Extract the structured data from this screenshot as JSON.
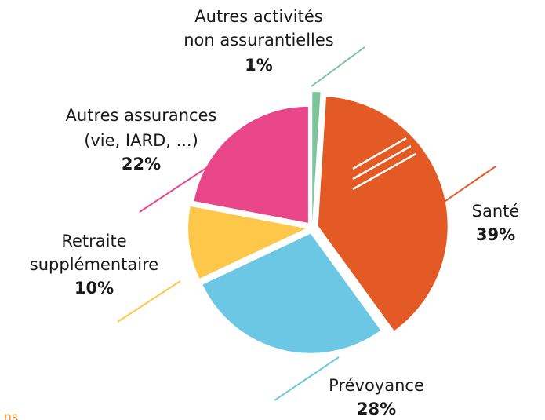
{
  "chart_data": {
    "type": "pie",
    "categories": [
      [
        "Autres activités",
        "non assurantielles"
      ],
      [
        "Santé"
      ],
      [
        "Prévoyance"
      ],
      [
        "Retraite",
        "supplémentaire"
      ],
      [
        "Autres assurances",
        "(vie, IARD, ...)"
      ]
    ],
    "values": [
      1,
      39,
      28,
      10,
      22
    ],
    "value_labels": [
      "1%",
      "39%",
      "28%",
      "10%",
      "22%"
    ],
    "colors": [
      "#7cc59b",
      "#e35a25",
      "#6cc7e5",
      "#fdc84a",
      "#e9468a"
    ],
    "footer": "ns"
  }
}
